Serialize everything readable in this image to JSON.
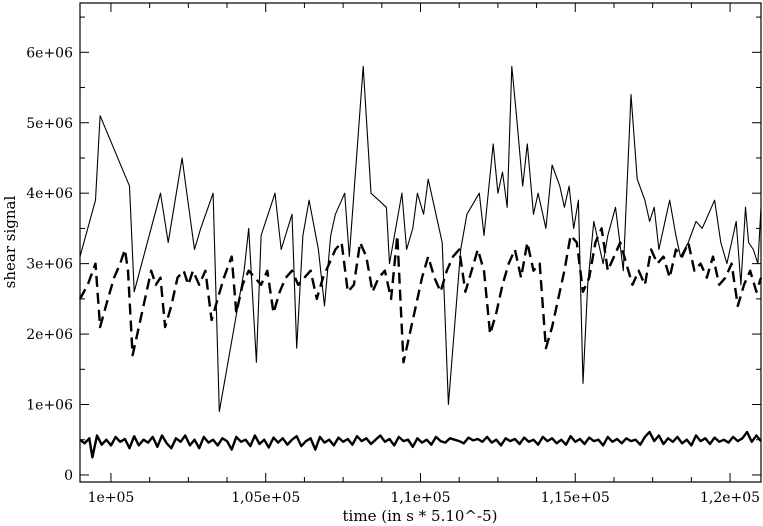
{
  "chart_data": {
    "type": "line",
    "title": "",
    "xlabel": "time (in s * 5.10^-5)",
    "ylabel": "shear signal",
    "xlim": [
      99000,
      121000
    ],
    "ylim": [
      -100000,
      6700000
    ],
    "grid": false,
    "x_ticks": [
      {
        "value": 100000,
        "label": "1e+05"
      },
      {
        "value": 105000,
        "label": "1,05e+05"
      },
      {
        "value": 110000,
        "label": "1,1e+05"
      },
      {
        "value": 115000,
        "label": "1,15e+05"
      },
      {
        "value": 120000,
        "label": "1,2e+05"
      }
    ],
    "y_ticks": [
      {
        "value": 0,
        "label": "0"
      },
      {
        "value": 1000000,
        "label": "1e+06"
      },
      {
        "value": 2000000,
        "label": "2e+06"
      },
      {
        "value": 3000000,
        "label": "3e+06"
      },
      {
        "value": 4000000,
        "label": "4e+06"
      },
      {
        "value": 5000000,
        "label": "5e+06"
      },
      {
        "value": 6000000,
        "label": "6e+06"
      }
    ],
    "series": [
      {
        "style": "thin-solid",
        "color": "#000000",
        "x": [
          99000,
          99500,
          99650,
          100600,
          100750,
          101600,
          101850,
          102300,
          102450,
          102700,
          102900,
          103300,
          103500,
          104300,
          104450,
          104700,
          104850,
          105300,
          105500,
          105850,
          106000,
          106200,
          106400,
          106700,
          106900,
          107100,
          107250,
          107550,
          107700,
          108150,
          108400,
          108900,
          109000,
          109400,
          109550,
          109750,
          109900,
          110100,
          110250,
          110700,
          110900,
          111300,
          111500,
          111900,
          112050,
          112350,
          112500,
          112650,
          112800,
          112950,
          113100,
          113300,
          113450,
          113650,
          113800,
          114050,
          114250,
          114500,
          114650,
          114800,
          114950,
          115100,
          115250,
          115400,
          115600,
          115900,
          116050,
          116300,
          116550,
          116800,
          117000,
          117250,
          117400,
          117550,
          117700,
          117900,
          118050,
          118250,
          118400,
          118650,
          118900,
          119100,
          119300,
          119500,
          119700,
          119900,
          120100,
          120200,
          120350,
          120500,
          120600,
          120750,
          120900,
          121000
        ],
        "values": [
          3100000,
          3900000,
          5100000,
          4100000,
          2600000,
          4000000,
          3300000,
          4500000,
          4000000,
          3200000,
          3500000,
          4000000,
          900000,
          2900000,
          3500000,
          1600000,
          3400000,
          4000000,
          3200000,
          3700000,
          1800000,
          3400000,
          3900000,
          3200000,
          2400000,
          3400000,
          3700000,
          4000000,
          3100000,
          5800000,
          4000000,
          3800000,
          3000000,
          4000000,
          3200000,
          3500000,
          4000000,
          3700000,
          4200000,
          3300000,
          1000000,
          3200000,
          3700000,
          4000000,
          3400000,
          4700000,
          4000000,
          4300000,
          3800000,
          5800000,
          5100000,
          4100000,
          4700000,
          3700000,
          4000000,
          3500000,
          4400000,
          4100000,
          3800000,
          4100000,
          3500000,
          3900000,
          1300000,
          2700000,
          3600000,
          3000000,
          3400000,
          3800000,
          2900000,
          5400000,
          4200000,
          3900000,
          3600000,
          3800000,
          3200000,
          3600000,
          3900000,
          3400000,
          3100000,
          3300000,
          3600000,
          3500000,
          3700000,
          3900000,
          3300000,
          3000000,
          3400000,
          3600000,
          2700000,
          3800000,
          3300000,
          3200000,
          3000000,
          3800000
        ]
      },
      {
        "style": "dashed",
        "color": "#000000",
        "x": [
          99000,
          99250,
          99500,
          99650,
          99900,
          100100,
          100300,
          100450,
          100550,
          100700,
          100850,
          101100,
          101300,
          101450,
          101600,
          101750,
          101950,
          102150,
          102350,
          102500,
          102650,
          102850,
          103050,
          103250,
          103450,
          103650,
          103900,
          104050,
          104250,
          104450,
          104650,
          104850,
          105050,
          105250,
          105450,
          105650,
          105850,
          106050,
          106250,
          106450,
          106650,
          106850,
          107050,
          107250,
          107450,
          107650,
          107850,
          108050,
          108250,
          108450,
          108650,
          108850,
          109050,
          109250,
          109450,
          109650,
          109850,
          110050,
          110250,
          110450,
          110650,
          110850,
          111050,
          111250,
          111450,
          111650,
          111850,
          112050,
          112250,
          112450,
          112650,
          112850,
          113050,
          113250,
          113450,
          113650,
          113850,
          114050,
          114250,
          114450,
          114650,
          114850,
          115050,
          115250,
          115450,
          115650,
          115850,
          116050,
          116250,
          116450,
          116650,
          116850,
          117050,
          117250,
          117450,
          117650,
          117850,
          118050,
          118250,
          118450,
          118650,
          118850,
          119050,
          119250,
          119450,
          119650,
          119850,
          120050,
          120250,
          120450,
          120650,
          120850,
          121000
        ],
        "values": [
          2500000,
          2700000,
          3000000,
          2100000,
          2500000,
          2800000,
          3000000,
          3200000,
          2900000,
          1700000,
          2000000,
          2500000,
          2900000,
          2700000,
          2800000,
          2100000,
          2400000,
          2800000,
          2900000,
          2700000,
          2900000,
          2700000,
          2900000,
          2200000,
          2500000,
          2800000,
          3100000,
          2300000,
          2700000,
          2900000,
          2800000,
          2700000,
          2900000,
          2300000,
          2600000,
          2800000,
          2900000,
          2700000,
          2800000,
          2900000,
          2500000,
          2800000,
          3000000,
          3200000,
          3300000,
          2600000,
          2700000,
          3300000,
          3100000,
          2600000,
          2800000,
          2900000,
          2500000,
          3400000,
          1600000,
          2000000,
          2400000,
          2800000,
          3100000,
          2800000,
          2600000,
          2900000,
          3100000,
          3200000,
          2600000,
          2900000,
          3200000,
          2900000,
          2000000,
          2300000,
          2700000,
          3000000,
          3200000,
          2800000,
          3300000,
          2900000,
          3000000,
          1800000,
          2100000,
          2500000,
          2900000,
          3400000,
          3300000,
          2600000,
          2800000,
          3300000,
          3500000,
          2900000,
          3100000,
          3300000,
          3000000,
          2700000,
          2900000,
          2700000,
          3200000,
          3000000,
          3100000,
          2800000,
          3200000,
          3100000,
          3300000,
          2900000,
          3000000,
          2800000,
          3100000,
          2700000,
          2800000,
          3000000,
          2400000,
          2700000,
          2900000,
          2600000,
          2800000
        ]
      },
      {
        "style": "thick-solid",
        "color": "#000000",
        "x": [
          99000,
          99150,
          99300,
          99400,
          99550,
          99700,
          99850,
          100000,
          100150,
          100300,
          100450,
          100600,
          100750,
          100900,
          101050,
          101200,
          101350,
          101500,
          101650,
          101800,
          101950,
          102100,
          102250,
          102400,
          102550,
          102700,
          102850,
          103000,
          103150,
          103300,
          103450,
          103600,
          103750,
          103900,
          104050,
          104200,
          104350,
          104500,
          104650,
          104800,
          104950,
          105100,
          105250,
          105400,
          105550,
          105700,
          105850,
          106000,
          106150,
          106300,
          106450,
          106600,
          106750,
          106900,
          107050,
          107200,
          107350,
          107500,
          107650,
          107800,
          107950,
          108100,
          108250,
          108400,
          108550,
          108700,
          108850,
          109000,
          109150,
          109300,
          109450,
          109600,
          109750,
          109900,
          110050,
          110200,
          110350,
          110500,
          110650,
          110800,
          110950,
          111100,
          111250,
          111400,
          111550,
          111700,
          111850,
          112000,
          112150,
          112300,
          112450,
          112600,
          112750,
          112900,
          113050,
          113200,
          113350,
          113500,
          113650,
          113800,
          113950,
          114100,
          114250,
          114400,
          114550,
          114700,
          114850,
          115000,
          115150,
          115300,
          115450,
          115600,
          115750,
          115900,
          116050,
          116200,
          116350,
          116500,
          116650,
          116800,
          116950,
          117100,
          117250,
          117400,
          117550,
          117700,
          117850,
          118000,
          118150,
          118300,
          118450,
          118600,
          118750,
          118900,
          119050,
          119200,
          119350,
          119500,
          119650,
          119800,
          119950,
          120100,
          120250,
          120400,
          120550,
          120700,
          120850,
          121000
        ],
        "values": [
          500000,
          450000,
          520000,
          250000,
          560000,
          430000,
          500000,
          420000,
          540000,
          470000,
          510000,
          380000,
          550000,
          420000,
          500000,
          460000,
          540000,
          400000,
          560000,
          450000,
          380000,
          520000,
          470000,
          560000,
          420000,
          500000,
          380000,
          540000,
          460000,
          500000,
          420000,
          520000,
          480000,
          360000,
          540000,
          470000,
          500000,
          410000,
          560000,
          440000,
          500000,
          390000,
          530000,
          460000,
          520000,
          430000,
          500000,
          550000,
          410000,
          480000,
          520000,
          360000,
          540000,
          460000,
          500000,
          420000,
          530000,
          470000,
          510000,
          430000,
          550000,
          480000,
          520000,
          440000,
          500000,
          560000,
          470000,
          510000,
          420000,
          540000,
          480000,
          500000,
          400000,
          520000,
          460000,
          500000,
          430000,
          540000,
          480000,
          460000,
          520000,
          500000,
          480000,
          450000,
          530000,
          490000,
          510000,
          470000,
          540000,
          460000,
          500000,
          420000,
          520000,
          480000,
          510000,
          440000,
          530000,
          470000,
          500000,
          430000,
          540000,
          480000,
          520000,
          450000,
          500000,
          430000,
          550000,
          470000,
          510000,
          440000,
          530000,
          480000,
          500000,
          420000,
          540000,
          470000,
          510000,
          450000,
          520000,
          480000,
          500000,
          430000,
          540000,
          610000,
          480000,
          560000,
          440000,
          520000,
          470000,
          540000,
          450000,
          500000,
          420000,
          560000,
          480000,
          520000,
          440000,
          530000,
          470000,
          500000,
          460000,
          540000,
          480000,
          520000,
          610000,
          470000,
          560000,
          480000
        ]
      }
    ]
  }
}
